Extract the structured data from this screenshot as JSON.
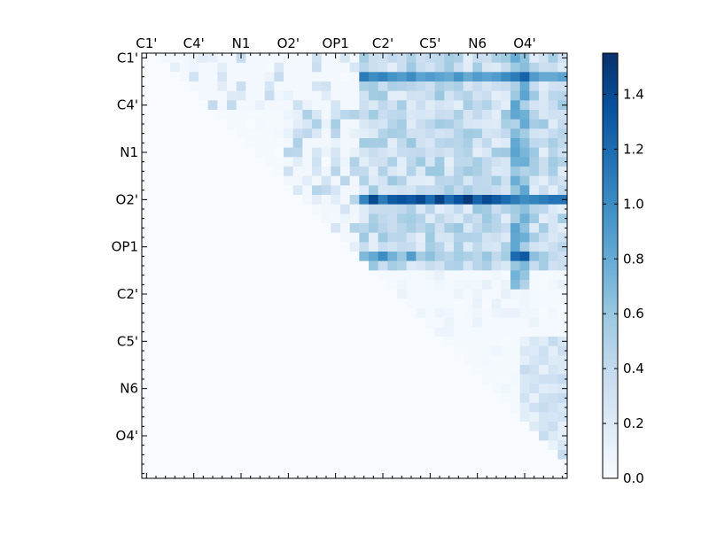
{
  "chart_data": {
    "type": "heatmap",
    "title": "",
    "xlabel": "",
    "ylabel": "",
    "x_tick_labels": [
      "C1'",
      "C4'",
      "N1",
      "O2'",
      "OP1",
      "C2'",
      "C5'",
      "N6",
      "O4'"
    ],
    "y_tick_labels": [
      "C1'",
      "C4'",
      "N1",
      "O2'",
      "OP1",
      "C2'",
      "C5'",
      "N6",
      "O4'"
    ],
    "grid": false,
    "colormap": "Blues",
    "colorbar": {
      "min": 0.0,
      "max": 1.55,
      "ticks": [
        "0.0",
        "0.2",
        "0.4",
        "0.6",
        "0.8",
        "1.0",
        "1.2",
        "1.4"
      ],
      "placement": "right"
    },
    "matrix_size": 45,
    "band_rows": [
      {
        "row": 2,
        "values": [
          [
            23,
            1.1
          ],
          [
            24,
            1.0
          ],
          [
            25,
            1.05
          ],
          [
            26,
            0.95
          ],
          [
            27,
            0.9
          ],
          [
            28,
            1.0
          ],
          [
            29,
            0.85
          ],
          [
            30,
            0.9
          ],
          [
            31,
            0.85
          ],
          [
            32,
            0.8
          ],
          [
            33,
            0.95
          ],
          [
            34,
            0.8
          ],
          [
            35,
            0.9
          ],
          [
            36,
            0.85
          ],
          [
            37,
            0.9
          ],
          [
            38,
            1.0
          ],
          [
            39,
            1.1
          ],
          [
            40,
            1.25
          ],
          [
            41,
            0.9
          ],
          [
            42,
            0.8
          ],
          [
            43,
            0.8
          ],
          [
            44,
            0.85
          ]
        ]
      },
      {
        "row": 15,
        "values": [
          [
            23,
            1.05
          ],
          [
            24,
            1.4
          ],
          [
            25,
            1.1
          ],
          [
            26,
            1.3
          ],
          [
            27,
            1.35
          ],
          [
            28,
            1.3
          ],
          [
            29,
            1.4
          ],
          [
            30,
            1.2
          ],
          [
            31,
            1.45
          ],
          [
            32,
            1.2
          ],
          [
            33,
            1.35
          ],
          [
            34,
            1.5
          ],
          [
            35,
            1.25
          ],
          [
            36,
            1.4
          ],
          [
            37,
            1.3
          ],
          [
            38,
            1.2
          ],
          [
            39,
            1.1
          ],
          [
            40,
            1.0
          ],
          [
            41,
            1.05
          ],
          [
            42,
            1.1
          ],
          [
            43,
            1.15
          ],
          [
            44,
            1.15
          ]
        ]
      },
      {
        "row": 21,
        "values": [
          [
            23,
            0.7
          ],
          [
            24,
            0.8
          ],
          [
            25,
            1.0
          ],
          [
            26,
            0.75
          ],
          [
            27,
            0.6
          ],
          [
            28,
            0.9
          ],
          [
            29,
            0.55
          ],
          [
            30,
            0.65
          ],
          [
            31,
            0.5
          ],
          [
            32,
            0.45
          ],
          [
            33,
            0.55
          ],
          [
            34,
            0.5
          ],
          [
            35,
            0.45
          ],
          [
            36,
            0.6
          ],
          [
            37,
            0.4
          ],
          [
            38,
            0.55
          ],
          [
            39,
            1.2
          ],
          [
            40,
            1.3
          ],
          [
            41,
            0.65
          ],
          [
            42,
            0.55
          ],
          [
            43,
            0.4
          ],
          [
            44,
            0.35
          ]
        ]
      }
    ]
  }
}
